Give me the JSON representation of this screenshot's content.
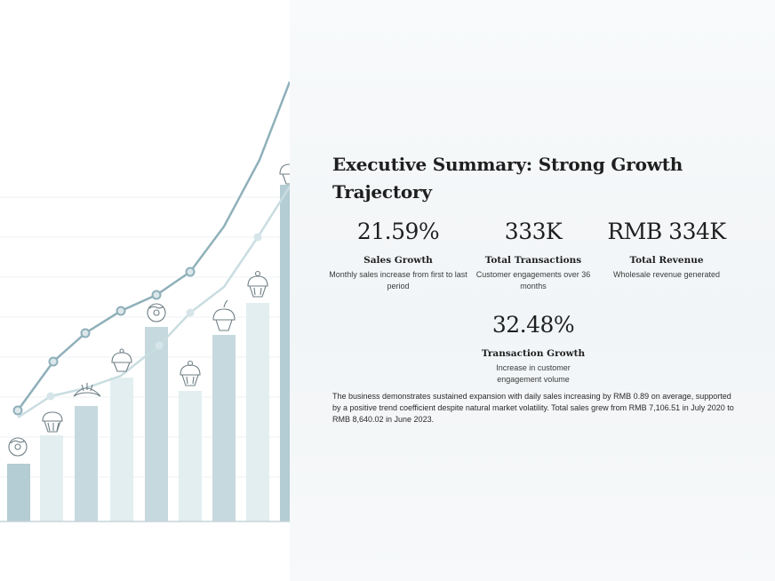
{
  "summary": {
    "title": "Executive Summary: Strong Growth Trajectory",
    "metrics": [
      {
        "value": "21.59%",
        "label": "Sales Growth",
        "description": "Monthly sales increase from first to last period"
      },
      {
        "value": "333K",
        "label": "Total Transactions",
        "description": "Customer engagements over 36 months"
      },
      {
        "value": "RMB 334K",
        "label": "Total Revenue",
        "description": "Wholesale revenue generated"
      },
      {
        "value": "32.48%",
        "label": "Transaction Growth",
        "description": "Increase in customer engagement volume"
      }
    ],
    "body": "The business demonstrates sustained expansion with daily sales increasing by RMB 0.89 on average, supported by a positive trend coefficient despite natural market volatility. Total sales grew from RMB 7,106.51 in July 2020 to RMB 8,640.02 in June 2023."
  },
  "colors": {
    "bar_dark": "#b4ccd3",
    "bar_light": "#e3eef0",
    "line_dark": "#8fb0ba",
    "line_light": "#c9dde1",
    "text": "#1f1f1f"
  },
  "icons": [
    "cupcake-icon",
    "croissant-icon",
    "donut-icon"
  ]
}
